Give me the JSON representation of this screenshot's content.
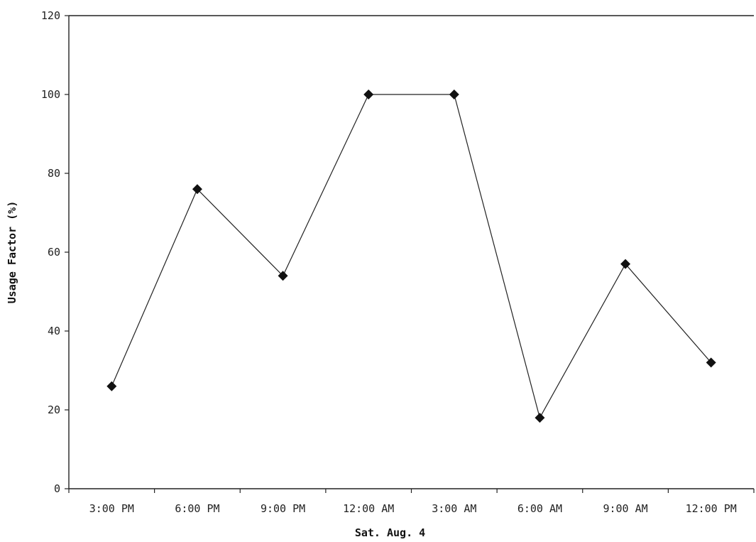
{
  "chart_data": {
    "type": "line",
    "title": "",
    "xlabel": "Sat. Aug. 4",
    "ylabel": "Usage Factor (%)",
    "categories": [
      "3:00 PM",
      "6:00 PM",
      "9:00 PM",
      "12:00 AM",
      "3:00 AM",
      "6:00 AM",
      "9:00 AM",
      "12:00 PM"
    ],
    "series": [
      {
        "values": [
          26,
          76,
          54,
          100,
          100,
          18,
          57,
          32
        ]
      }
    ],
    "ylim": [
      0,
      120
    ],
    "yticks": [
      "0",
      "20",
      "40",
      "60",
      "80",
      "100",
      "120"
    ],
    "grid": false,
    "legend": "none",
    "colors": {
      "line": "#222222",
      "marker": "#111111",
      "axis": "#222222",
      "background": "#ffffff"
    }
  }
}
